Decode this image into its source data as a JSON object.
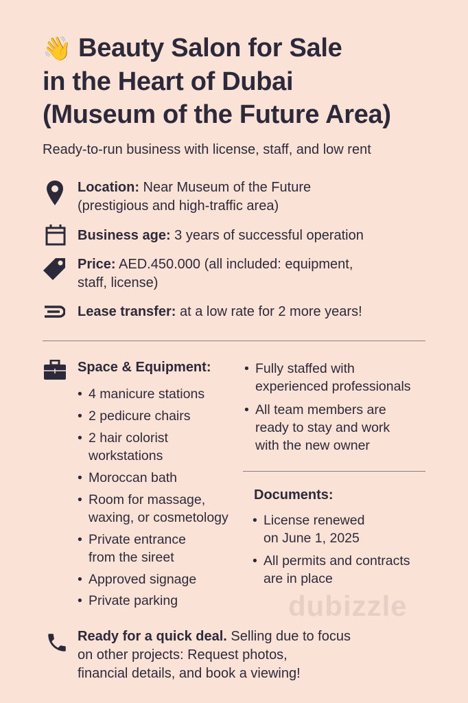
{
  "title": {
    "emoji": "👋",
    "line1": "Beauty Salon for Sale",
    "line2": "in the Heart of Dubai",
    "line3": "(Museum of the Future Area)"
  },
  "subtitle": "Ready-to-run business with license, staff, and low rent",
  "features": [
    {
      "icon": "location-pin-icon",
      "label": "Location:",
      "text": " Near Museum of the Future\n(prestigious and high-traffic area)"
    },
    {
      "icon": "calendar-icon",
      "label": "Business age:",
      "text": " 3 years of successful operation"
    },
    {
      "icon": "price-tag-icon",
      "label": "Price:",
      "text": " AED.450.000 (all included: equipment,\nstaff, license)"
    },
    {
      "icon": "lease-icon",
      "label": "Lease transfer:",
      "text": " at a low rate for 2 more years!"
    }
  ],
  "watermark": "dubizzle",
  "space": {
    "icon": "briefcase-icon",
    "heading": "Space & Equipment:",
    "items": [
      "4 manicure stations",
      "2 pedicure chairs",
      "2 hair colorist\nworkstations",
      "Moroccan bath",
      "Room for massage,\nwaxing, or cosmetology",
      "Private entrance\nfrom the sireet",
      "Approved signage",
      "Private parking"
    ]
  },
  "staff": {
    "items": [
      "Fully staffed with\nexperienced professionals",
      "All team members are\nready to stay and work\nwith the new owner"
    ]
  },
  "documents": {
    "heading": "Documents:",
    "items": [
      "License renewed\non June 1, 2025",
      "All permits and contracts\nare in place"
    ]
  },
  "cta": {
    "icon": "phone-icon",
    "label": "Ready for a quick deal.",
    "text": " Selling due to focus\non other projects: Request photos,\nfinancial details, and book a viewing!"
  },
  "colors": {
    "background": "#fbe2d7",
    "text": "#2c2a3a"
  }
}
